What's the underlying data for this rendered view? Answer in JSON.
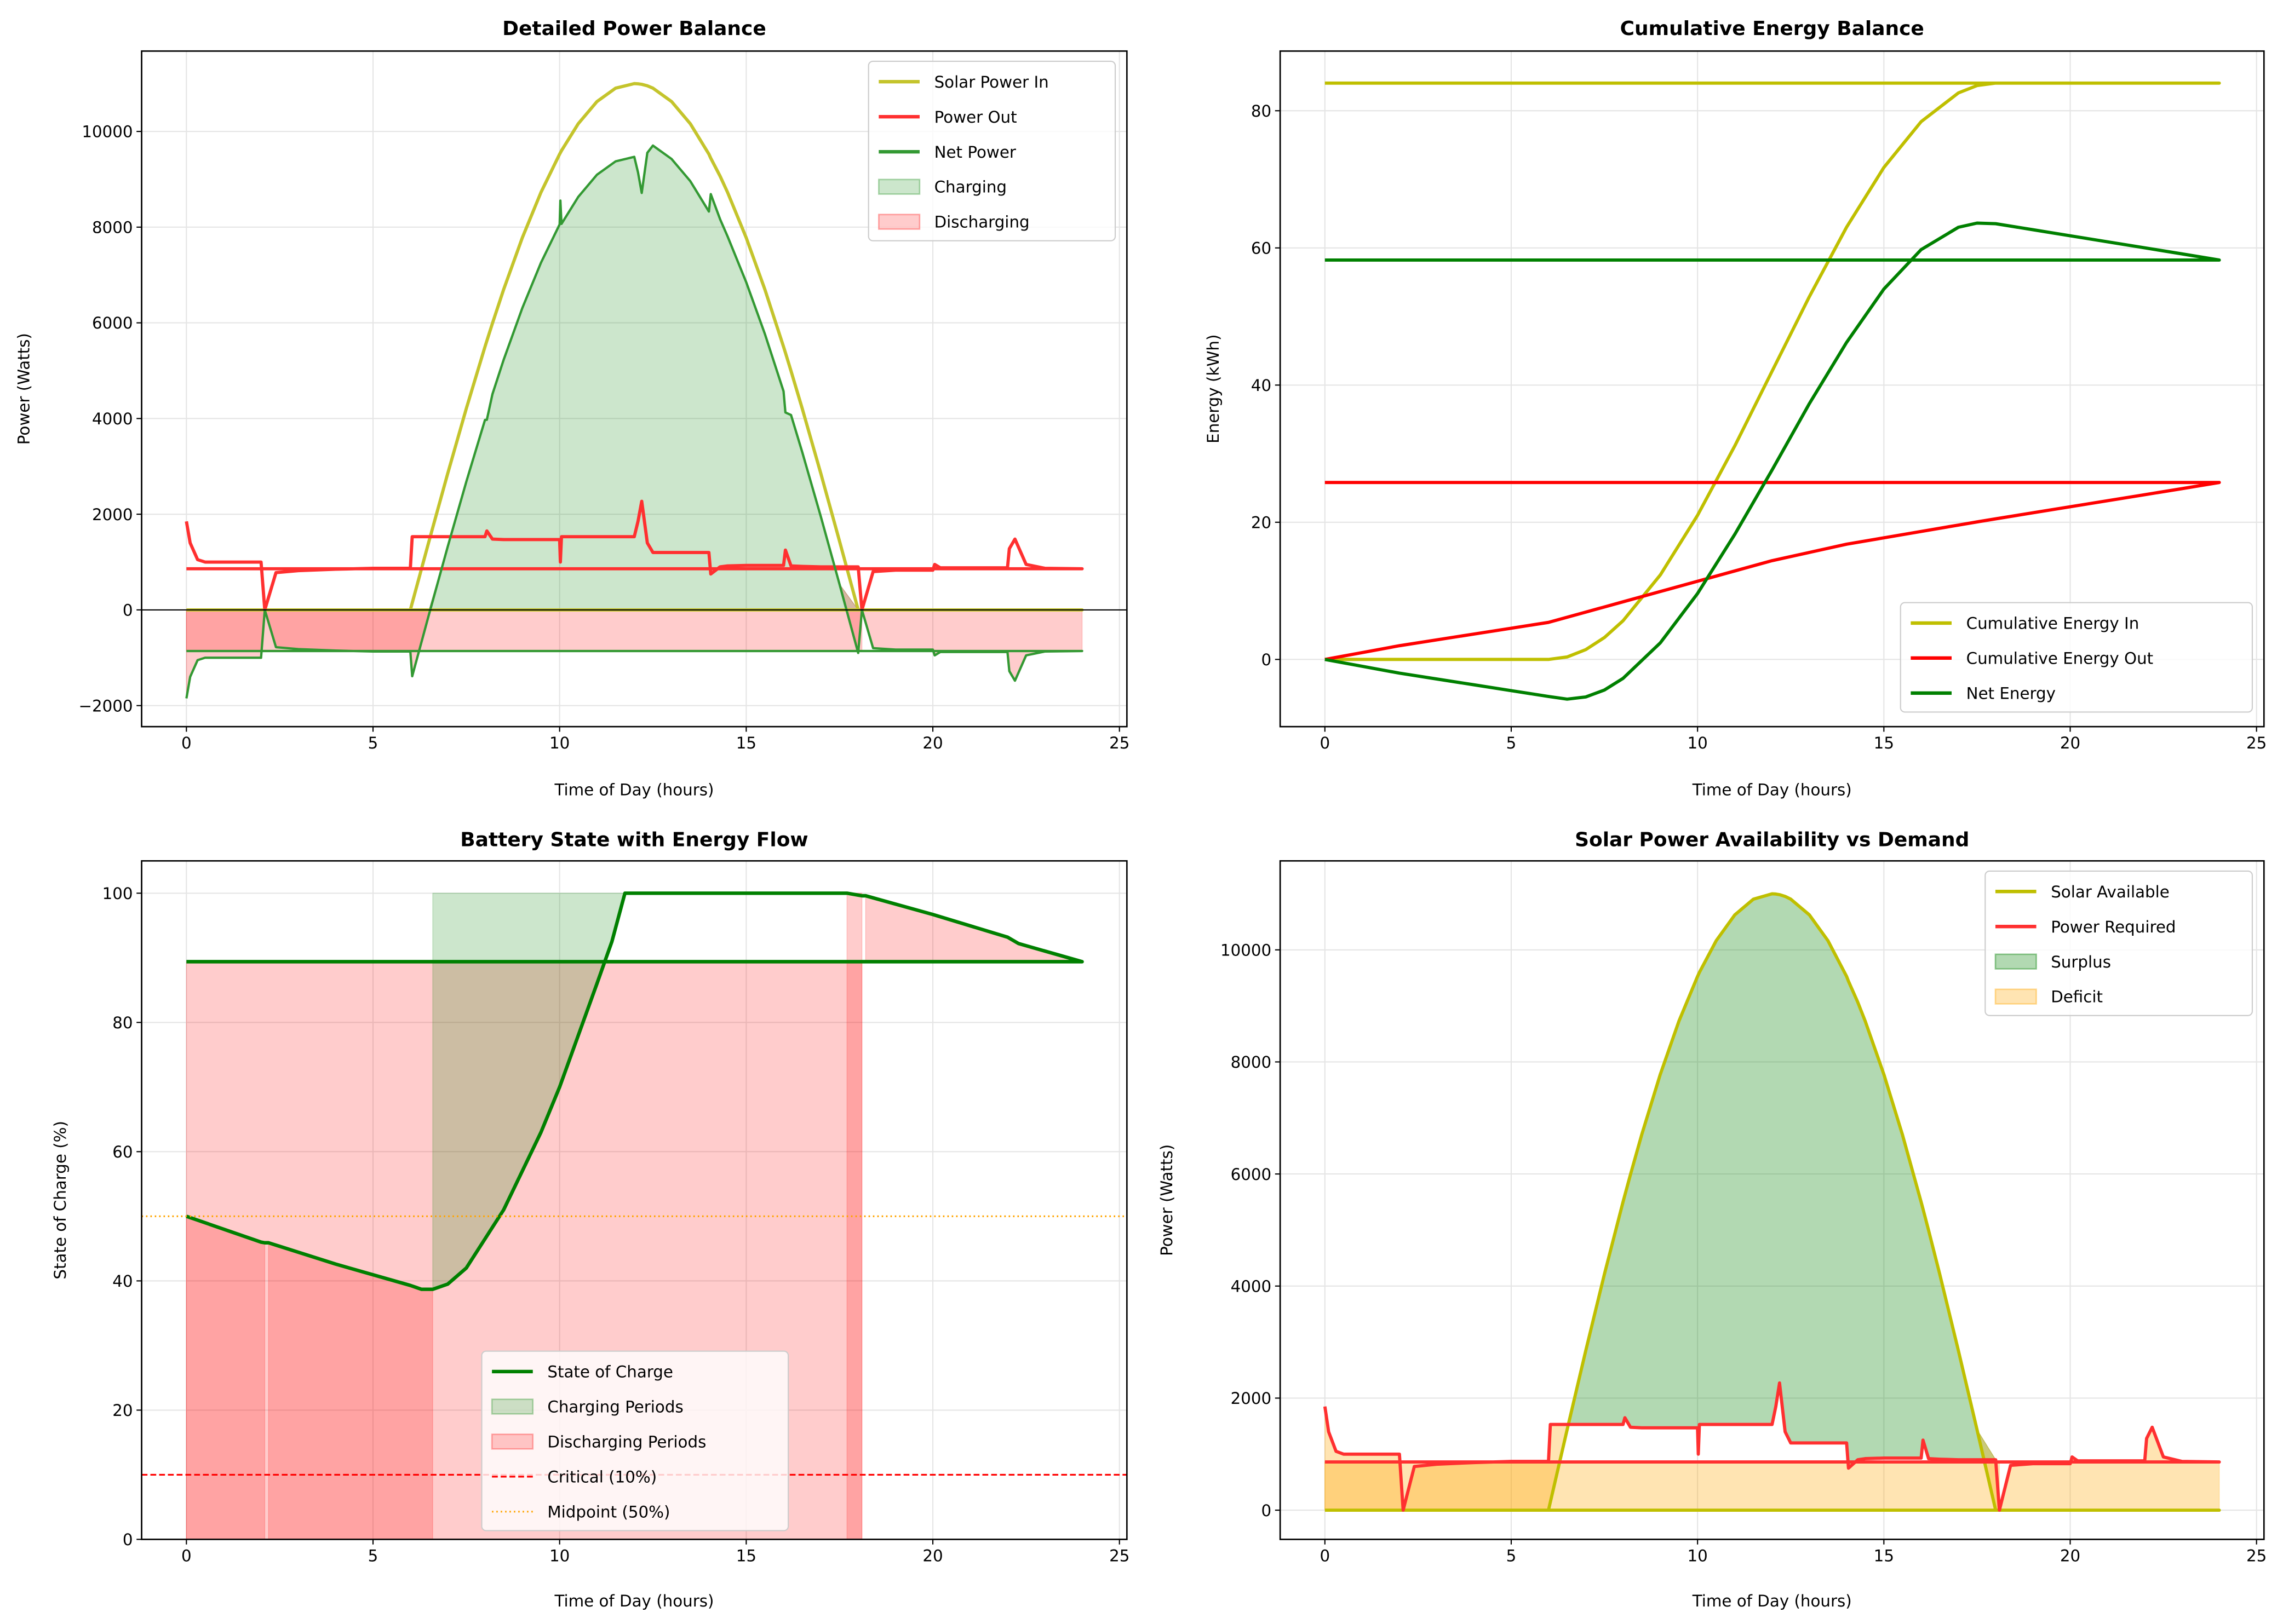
{
  "chart_data": [
    {
      "id": "tl",
      "type": "line",
      "title": "Detailed Power Balance",
      "xlabel": "Time of Day (hours)",
      "ylabel": "Power (Watts)",
      "xlim": [
        -1.2,
        25.2
      ],
      "ylim": [
        -2440,
        11680
      ],
      "xticks": [
        0,
        5,
        10,
        15,
        20,
        25
      ],
      "yticks": [
        -2000,
        0,
        2000,
        4000,
        6000,
        8000,
        10000
      ],
      "ytick_labels": [
        "−2000",
        "0",
        "2000",
        "4000",
        "6000",
        "8000",
        "10000"
      ],
      "grid": true,
      "zero_line": true,
      "legend_position": "upper right",
      "x": [
        0,
        0.1,
        0.3,
        0.5,
        1,
        1.5,
        2,
        2.1,
        2.4,
        3,
        4,
        5,
        6,
        6.05,
        6.5,
        7,
        7.5,
        8,
        8.05,
        8.2,
        8.5,
        9,
        9.5,
        10,
        10.02,
        10.05,
        10.5,
        11,
        11.5,
        12,
        12.1,
        12.2,
        12.35,
        12.5,
        13,
        13.5,
        14,
        14.05,
        14.3,
        14.5,
        15,
        15.5,
        16,
        16.05,
        16.2,
        16.5,
        17,
        17.5,
        18,
        18.1,
        18.4,
        19,
        20,
        20.05,
        20.2,
        21,
        22,
        22.05,
        22.2,
        22.5,
        23,
        24
      ],
      "series": [
        {
          "key": "solar",
          "name": "Solar Power In",
          "color": "#c4c42c",
          "width": 2.2,
          "wraps_to_start": true,
          "values": [
            0,
            0,
            0,
            0,
            0,
            0,
            0,
            0,
            0,
            0,
            0,
            0,
            0,
            144,
            1436,
            2847,
            4210,
            5500,
            5624,
            5990,
            6697,
            7778,
            8727,
            9526,
            9555,
            9598,
            10163,
            10625,
            10905,
            11000,
            10996,
            10985,
            10954,
            10905,
            10625,
            10163,
            9526,
            9440,
            9065,
            8727,
            7778,
            6697,
            5500,
            5376,
            4994,
            4210,
            2847,
            1436,
            0,
            0,
            0,
            0,
            0,
            0,
            0,
            0,
            0,
            0,
            0,
            0,
            0,
            0
          ]
        },
        {
          "key": "out",
          "name": "Power Out",
          "color": "#ff3030",
          "width": 2.2,
          "wraps_to_start": true,
          "values": [
            1850,
            1400,
            1050,
            1000,
            1000,
            1000,
            1000,
            0,
            780,
            820,
            850,
            870,
            870,
            1530,
            1530,
            1530,
            1530,
            1530,
            1650,
            1480,
            1470,
            1470,
            1470,
            1470,
            1000,
            1530,
            1530,
            1530,
            1530,
            1530,
            1850,
            2270,
            1400,
            1200,
            1200,
            1200,
            1200,
            750,
            900,
            920,
            930,
            930,
            930,
            1250,
            920,
            910,
            900,
            900,
            900,
            0,
            800,
            830,
            830,
            950,
            880,
            880,
            880,
            1280,
            1480,
            950,
            870,
            860
          ]
        },
        {
          "key": "net",
          "name": "Net Power",
          "color": "#339933",
          "width": 1.6,
          "wraps_to_start": true,
          "values": [
            -1850,
            -1400,
            -1050,
            -1000,
            -1000,
            -1000,
            -1000,
            0,
            -780,
            -820,
            -850,
            -870,
            -870,
            -1386,
            -94,
            1317,
            2680,
            3970,
            3974,
            4510,
            5227,
            6308,
            7257,
            8056,
            8555,
            8068,
            8633,
            9095,
            9375,
            9470,
            9146,
            8715,
            9554,
            9705,
            9425,
            8963,
            8326,
            8690,
            8165,
            7807,
            6848,
            5767,
            4570,
            4126,
            4074,
            3300,
            1947,
            536,
            -900,
            0,
            -800,
            -830,
            -830,
            -950,
            -880,
            -880,
            -880,
            -1280,
            -1480,
            -950,
            -870,
            -860
          ]
        }
      ],
      "fills": [
        {
          "name": "Charging",
          "color": "#008000",
          "alpha": 0.2,
          "lower": 0,
          "upper": "net"
        },
        {
          "name": "Discharging",
          "color": "#ff0000",
          "alpha": 0.2,
          "lower": "net",
          "upper": 0
        },
        {
          "name": "Discharging",
          "color": "#ff0000",
          "alpha": 0.2,
          "x_range": [
            0,
            18.1
          ],
          "lower": -860,
          "upper": 0
        }
      ],
      "legend": [
        {
          "label": "Solar Power In",
          "kind": "line",
          "color": "#c4c42c"
        },
        {
          "label": "Power Out",
          "kind": "line",
          "color": "#ff3030"
        },
        {
          "label": "Net Power",
          "kind": "line",
          "color": "#339933"
        },
        {
          "label": "Charging",
          "kind": "patch",
          "color": "#008000",
          "alpha": 0.2
        },
        {
          "label": "Discharging",
          "kind": "patch",
          "color": "#ff0000",
          "alpha": 0.2
        }
      ]
    },
    {
      "id": "tr",
      "type": "line",
      "title": "Cumulative Energy Balance",
      "xlabel": "Time of Day (hours)",
      "ylabel": "Energy (kWh)",
      "xlim": [
        -1.2,
        25.2
      ],
      "ylim": [
        -9.8,
        88.7
      ],
      "xticks": [
        0,
        5,
        10,
        15,
        20,
        25
      ],
      "yticks": [
        0,
        20,
        40,
        60,
        80
      ],
      "grid": true,
      "legend_position": "lower right",
      "x": [
        0,
        1,
        2,
        3,
        4,
        5,
        6,
        6.5,
        7,
        7.5,
        8,
        9,
        10,
        11,
        12,
        13,
        14,
        15,
        16,
        17,
        17.5,
        18,
        19,
        20,
        21,
        22,
        23,
        24
      ],
      "series": [
        {
          "key": "ein",
          "name": "Cumulative Energy In",
          "color": "#bfbf00",
          "width": 2.2,
          "wraps_to_start": true,
          "values": [
            0,
            0,
            0,
            0,
            0,
            0,
            0,
            0.36,
            1.43,
            3.19,
            5.63,
            12.31,
            21.01,
            31.14,
            42.02,
            52.89,
            63.03,
            71.73,
            78.41,
            82.6,
            83.67,
            84.03,
            84.03,
            84.03,
            84.03,
            84.03,
            84.03,
            84.03
          ]
        },
        {
          "key": "eout",
          "name": "Cumulative Energy Out",
          "color": "#ff0000",
          "width": 2.2,
          "wraps_to_start": true,
          "values": [
            0,
            1,
            2,
            2.85,
            3.7,
            4.55,
            5.4,
            6.15,
            6.9,
            7.65,
            8.4,
            9.9,
            11.4,
            12.9,
            14.4,
            15.6,
            16.8,
            17.73,
            18.66,
            19.59,
            20.05,
            20.5,
            21.38,
            22.26,
            23.14,
            24.02,
            24.9,
            25.8
          ]
        },
        {
          "key": "enet",
          "name": "Net Energy",
          "color": "#008000",
          "width": 2.2,
          "wraps_to_start": true,
          "values": [
            0,
            -1,
            -2,
            -2.85,
            -3.7,
            -4.55,
            -5.4,
            -5.79,
            -5.47,
            -4.46,
            -2.77,
            2.41,
            9.61,
            18.24,
            27.62,
            37.29,
            46.23,
            54.0,
            59.75,
            63.01,
            63.62,
            63.53,
            62.65,
            61.77,
            60.89,
            60.01,
            59.13,
            58.23
          ]
        }
      ],
      "fills": [],
      "legend": [
        {
          "label": "Cumulative Energy In",
          "kind": "line",
          "color": "#bfbf00"
        },
        {
          "label": "Cumulative Energy Out",
          "kind": "line",
          "color": "#ff0000"
        },
        {
          "label": "Net Energy",
          "kind": "line",
          "color": "#008000"
        }
      ]
    },
    {
      "id": "bl",
      "type": "line",
      "title": "Battery State with Energy Flow",
      "xlabel": "Time of Day (hours)",
      "ylabel": "State of Charge (%)",
      "xlim": [
        -1.2,
        25.2
      ],
      "ylim": [
        0,
        105
      ],
      "xticks": [
        0,
        5,
        10,
        15,
        20,
        25
      ],
      "yticks": [
        0,
        20,
        40,
        60,
        80,
        100
      ],
      "grid": true,
      "legend_position": "lower center",
      "x": [
        0,
        2,
        2.1,
        2.2,
        4,
        6,
        6.3,
        6.6,
        7,
        7.5,
        8,
        8.5,
        9,
        9.5,
        10,
        10.5,
        11,
        11.4,
        11.75,
        17.7,
        18,
        18.1,
        18.2,
        20,
        22,
        22.3,
        24
      ],
      "series": [
        {
          "key": "soc",
          "name": "State of Charge",
          "color": "#008000",
          "width": 2.4,
          "wraps_to_start": true,
          "values": [
            50,
            46,
            45.9,
            45.9,
            42.6,
            39.3,
            38.7,
            38.7,
            39.5,
            42,
            46.5,
            51,
            57,
            63,
            70,
            78,
            86,
            92.5,
            100,
            100,
            99.7,
            99.6,
            99.6,
            96.7,
            93.2,
            92.2,
            89.4
          ]
        }
      ],
      "hlines": [
        {
          "name": "Critical (10%)",
          "y": 10,
          "color": "#ff0000",
          "style": "dashed"
        },
        {
          "name": "Midpoint (50%)",
          "y": 50,
          "color": "#ffa500",
          "style": "dotted"
        }
      ],
      "fills": [
        {
          "name": "Discharging Periods",
          "color": "#ff0000",
          "alpha": 0.2,
          "x_range": [
            0,
            18.1
          ],
          "lower": 0,
          "upper": 89.4
        },
        {
          "name": "Discharging Periods",
          "color": "#ff0000",
          "alpha": 0.2,
          "x_range": [
            0,
            2.1
          ],
          "lower": 0,
          "upper": "soc"
        },
        {
          "name": "Discharging Periods",
          "color": "#ff0000",
          "alpha": 0.2,
          "x_range": [
            2.2,
            6.6
          ],
          "lower": 0,
          "upper": "soc"
        },
        {
          "name": "Discharging Periods",
          "color": "#ff0000",
          "alpha": 0.2,
          "x_range": [
            17.7,
            18.1
          ],
          "lower": 0,
          "upper": 100
        },
        {
          "name": "Discharging Periods",
          "color": "#ff0000",
          "alpha": 0.2,
          "x_range": [
            18.2,
            24
          ],
          "lower": 89.4,
          "upper": "soc"
        },
        {
          "name": "Charging Periods",
          "color": "#008000",
          "alpha": 0.2,
          "x_range": [
            6.6,
            11.75
          ],
          "lower": "soc",
          "upper": 100
        }
      ],
      "legend": [
        {
          "label": "State of Charge",
          "kind": "line",
          "color": "#008000"
        },
        {
          "label": "Charging Periods",
          "kind": "patch",
          "color": "#008000",
          "alpha": 0.2
        },
        {
          "label": "Discharging Periods",
          "kind": "patch",
          "color": "#ff0000",
          "alpha": 0.2
        },
        {
          "label": "Critical (10%)",
          "kind": "dashed",
          "color": "#ff0000"
        },
        {
          "label": "Midpoint (50%)",
          "kind": "dotted",
          "color": "#ffa500"
        }
      ]
    },
    {
      "id": "br",
      "type": "line",
      "title": "Solar Power Availability vs Demand",
      "xlabel": "Time of Day (hours)",
      "ylabel": "Power (Watts)",
      "xlim": [
        -1.2,
        25.2
      ],
      "ylim": [
        -521,
        11588
      ],
      "xticks": [
        0,
        5,
        10,
        15,
        20,
        25
      ],
      "yticks": [
        0,
        2000,
        4000,
        6000,
        8000,
        10000
      ],
      "grid": true,
      "legend_position": "upper right",
      "x": [
        0,
        0.1,
        0.3,
        0.5,
        1,
        1.5,
        2,
        2.1,
        2.4,
        3,
        4,
        5,
        6,
        6.05,
        6.5,
        7,
        7.5,
        8,
        8.05,
        8.2,
        8.5,
        9,
        9.5,
        10,
        10.02,
        10.05,
        10.5,
        11,
        11.5,
        12,
        12.1,
        12.2,
        12.35,
        12.5,
        13,
        13.5,
        14,
        14.05,
        14.3,
        14.5,
        15,
        15.5,
        16,
        16.05,
        16.2,
        16.5,
        17,
        17.5,
        18,
        18.1,
        18.4,
        19,
        20,
        20.05,
        20.2,
        21,
        22,
        22.05,
        22.2,
        22.5,
        23,
        24
      ],
      "series": [
        {
          "key": "solar",
          "name": "Solar Available",
          "color": "#bfbf00",
          "width": 2.2,
          "wraps_to_start": true,
          "values": [
            0,
            0,
            0,
            0,
            0,
            0,
            0,
            0,
            0,
            0,
            0,
            0,
            0,
            144,
            1436,
            2847,
            4210,
            5500,
            5624,
            5990,
            6697,
            7778,
            8727,
            9526,
            9555,
            9598,
            10163,
            10625,
            10905,
            11000,
            10996,
            10985,
            10954,
            10905,
            10625,
            10163,
            9526,
            9440,
            9065,
            8727,
            7778,
            6697,
            5500,
            5376,
            4994,
            4210,
            2847,
            1436,
            0,
            0,
            0,
            0,
            0,
            0,
            0,
            0,
            0,
            0,
            0,
            0,
            0,
            0
          ]
        },
        {
          "key": "req",
          "name": "Power Required",
          "color": "#ff3030",
          "width": 2.2,
          "wraps_to_start": true,
          "values": [
            1850,
            1400,
            1050,
            1000,
            1000,
            1000,
            1000,
            0,
            780,
            820,
            850,
            870,
            870,
            1530,
            1530,
            1530,
            1530,
            1530,
            1650,
            1480,
            1470,
            1470,
            1470,
            1470,
            1000,
            1530,
            1530,
            1530,
            1530,
            1530,
            1850,
            2270,
            1400,
            1200,
            1200,
            1200,
            1200,
            750,
            900,
            920,
            930,
            930,
            930,
            1250,
            920,
            910,
            900,
            900,
            900,
            0,
            800,
            830,
            830,
            950,
            880,
            880,
            880,
            1280,
            1480,
            950,
            870,
            860
          ]
        }
      ],
      "fills": [
        {
          "name": "Surplus",
          "color": "#008000",
          "alpha": 0.3,
          "lower": "req",
          "upper": "solar"
        },
        {
          "name": "Deficit",
          "color": "#ffa500",
          "alpha": 0.3,
          "lower": "solar",
          "upper": "req"
        },
        {
          "name": "Deficit",
          "color": "#ffa500",
          "alpha": 0.3,
          "x_range": [
            0,
            18.1
          ],
          "lower": 0,
          "upper": 860
        }
      ],
      "legend": [
        {
          "label": "Solar Available",
          "kind": "line",
          "color": "#bfbf00"
        },
        {
          "label": "Power Required",
          "kind": "line",
          "color": "#ff3030"
        },
        {
          "label": "Surplus",
          "kind": "patch",
          "color": "#008000",
          "alpha": 0.3
        },
        {
          "label": "Deficit",
          "kind": "patch",
          "color": "#ffa500",
          "alpha": 0.3
        }
      ]
    }
  ]
}
